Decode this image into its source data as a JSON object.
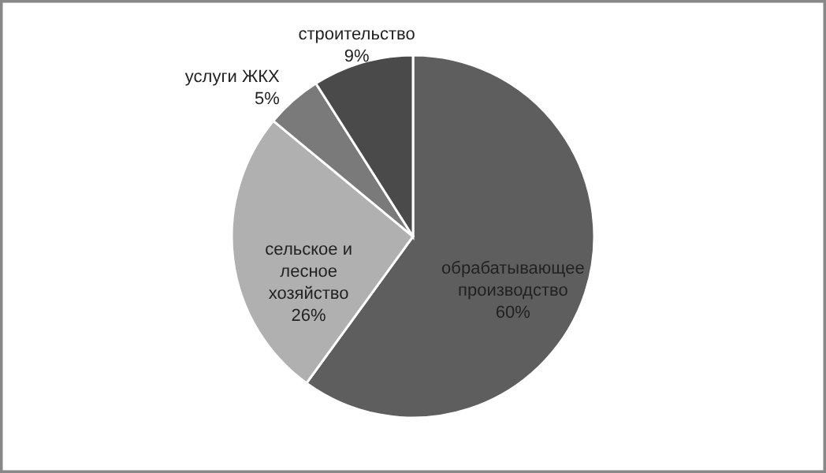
{
  "chart_data": {
    "type": "pie",
    "categories": [
      "обрабатывающее производство",
      "сельское и лесное хозяйство",
      "услуги ЖКХ",
      "строительство"
    ],
    "values": [
      60,
      26,
      5,
      9
    ],
    "colors": [
      "#5e5e5e",
      "#b0b0b0",
      "#7a7a7a",
      "#4a4a4a"
    ],
    "value_labels": [
      "60%",
      "26%",
      "5%",
      "9%"
    ]
  }
}
